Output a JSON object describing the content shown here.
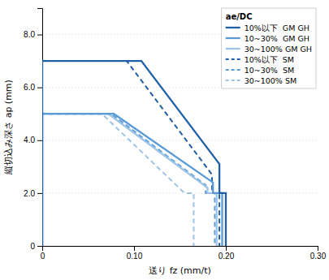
{
  "chart_data": {
    "type": "line",
    "xlabel": "送り fz (mm/t)",
    "ylabel": "縦切込み深さ ap (mm)",
    "xlim": [
      0,
      0.3
    ],
    "ylim": [
      0,
      9.0
    ],
    "xticks": [
      0,
      {
        "value": 0.1,
        "label": "0.10"
      },
      {
        "value": 0.2,
        "label": "0.20"
      },
      {
        "value": 0.3,
        "label": "0.30"
      }
    ],
    "yticks": [
      0,
      {
        "value": 2.0,
        "label": "2.0"
      },
      {
        "value": 4.0,
        "label": "4.0"
      },
      {
        "value": 6.0,
        "label": "6.0"
      },
      {
        "value": 8.0,
        "label": "8.0"
      }
    ],
    "grid": true,
    "legend": "upper right",
    "legend_title": "ae/DC",
    "series": [
      {
        "name": "10%以下  GM GH",
        "color": "#1f5fa6",
        "line_style": "solid",
        "x": [
          0.0,
          0.0,
          0.108,
          0.193,
          0.193,
          0.2,
          0.2
        ],
        "values": [
          0.0,
          7.0,
          7.0,
          3.1,
          2.0,
          2.0,
          0.0
        ]
      },
      {
        "name": "10~30%  GM GH",
        "color": "#5b9bd5",
        "line_style": "solid",
        "x": [
          0.0,
          0.0,
          0.078,
          0.186,
          0.186,
          0.196,
          0.196
        ],
        "values": [
          0.0,
          5.0,
          5.0,
          2.4,
          2.0,
          2.0,
          0.0
        ]
      },
      {
        "name": "30~100% GM GH",
        "color": "#9dc3e6",
        "line_style": "solid",
        "x": [
          0.0,
          0.0,
          0.072,
          0.18,
          0.18,
          0.19,
          0.19
        ],
        "values": [
          0.0,
          5.0,
          5.0,
          2.2,
          2.0,
          2.0,
          0.0
        ]
      },
      {
        "name": "10%以下  SM",
        "color": "#1f5fa6",
        "line_style": "dashed",
        "x": [
          0.0,
          0.0,
          0.092,
          0.185,
          0.185,
          0.193,
          0.193
        ],
        "values": [
          0.0,
          7.0,
          7.0,
          2.7,
          2.0,
          2.0,
          0.0
        ]
      },
      {
        "name": "10~30%  SM",
        "color": "#5b9bd5",
        "line_style": "dashed",
        "x": [
          0.0,
          0.0,
          0.075,
          0.178,
          0.178,
          0.188,
          0.188
        ],
        "values": [
          0.0,
          5.0,
          5.0,
          2.3,
          2.0,
          2.0,
          0.0
        ]
      },
      {
        "name": "30~100% SM",
        "color": "#9dc3e6",
        "line_style": "dashed",
        "x": [
          0.0,
          0.0,
          0.065,
          0.155,
          0.155,
          0.165,
          0.165
        ],
        "values": [
          0.0,
          5.0,
          5.0,
          2.0,
          2.0,
          2.0,
          0.0
        ]
      }
    ]
  }
}
